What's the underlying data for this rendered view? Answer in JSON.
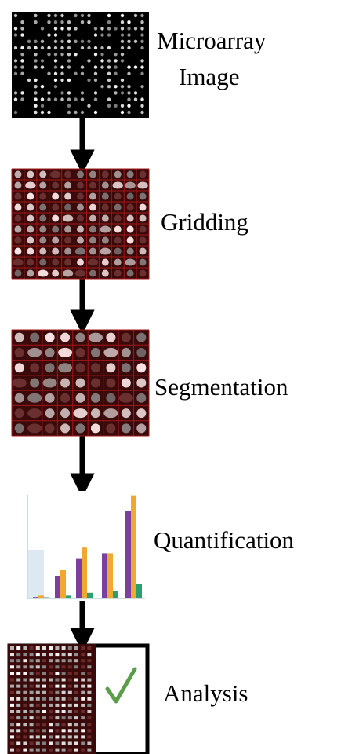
{
  "steps": [
    {
      "label_lines": [
        "Microarray",
        "Image"
      ]
    },
    {
      "label_lines": [
        "Gridding"
      ]
    },
    {
      "label_lines": [
        "Segmentation"
      ]
    },
    {
      "label_lines": [
        "Quantification"
      ]
    },
    {
      "label_lines": [
        "Analysis"
      ]
    }
  ]
}
